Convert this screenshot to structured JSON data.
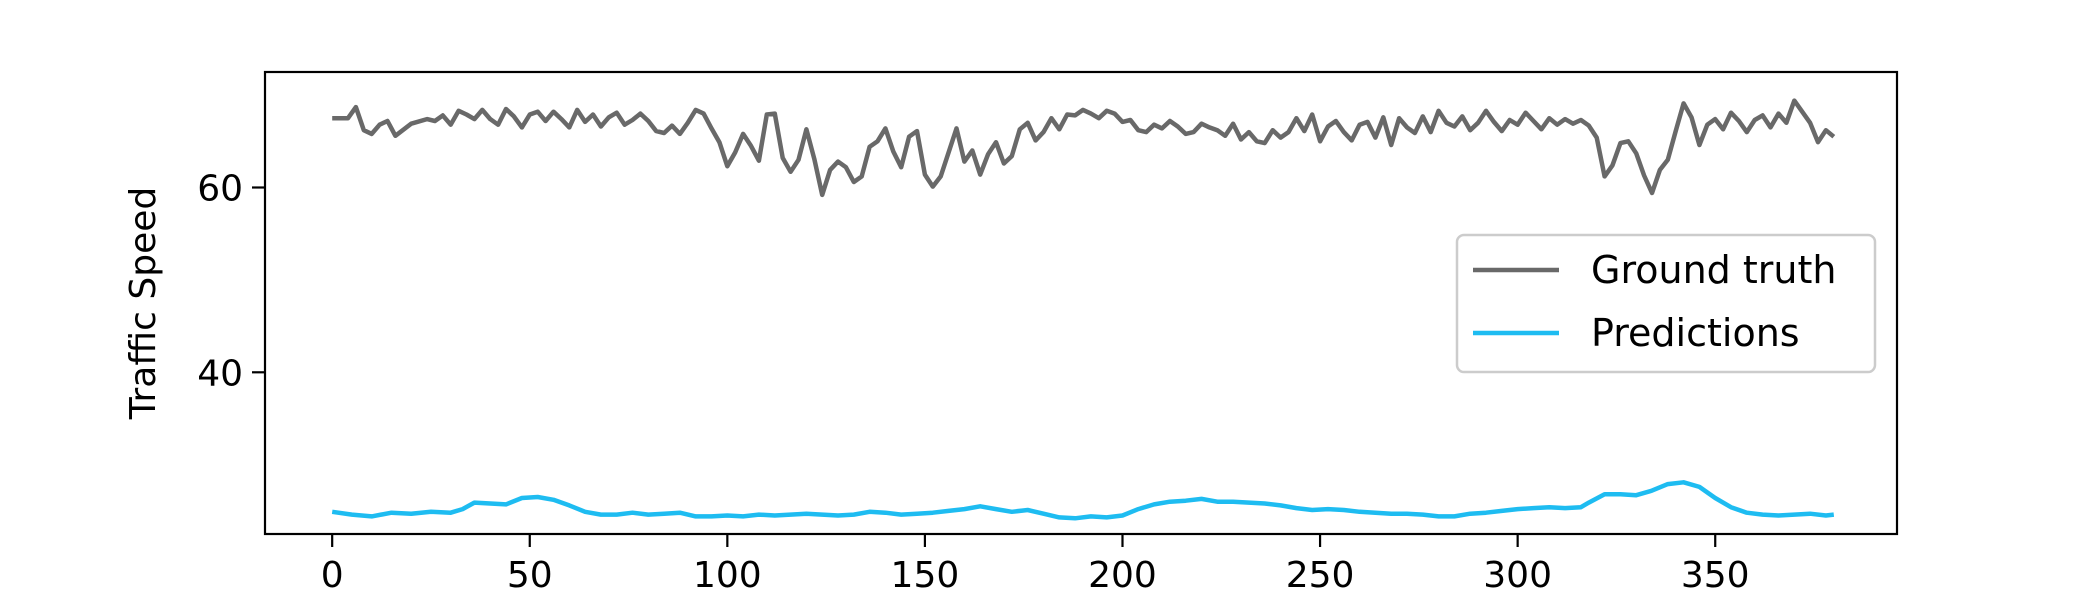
{
  "chart_data": {
    "type": "line",
    "title": "",
    "xlabel": "",
    "ylabel": "Traffic Speed",
    "xlim": [
      -17,
      396
    ],
    "ylim": [
      22.5,
      72.5
    ],
    "x_ticks": [
      0,
      50,
      100,
      150,
      200,
      250,
      300,
      350
    ],
    "y_ticks": [
      40,
      60
    ],
    "grid": false,
    "legend": {
      "placement": "center-right"
    },
    "series": [
      {
        "name": "Ground truth",
        "color": "#696969",
        "points": [
          [
            0,
            67.5
          ],
          [
            4,
            67.5
          ],
          [
            6,
            68.7
          ],
          [
            8,
            66.2
          ],
          [
            10,
            65.8
          ],
          [
            12,
            66.8
          ],
          [
            14,
            67.2
          ],
          [
            16,
            65.6
          ],
          [
            20,
            66.9
          ],
          [
            24,
            67.4
          ],
          [
            26,
            67.2
          ],
          [
            28,
            67.8
          ],
          [
            30,
            66.8
          ],
          [
            32,
            68.3
          ],
          [
            34,
            67.9
          ],
          [
            36,
            67.4
          ],
          [
            38,
            68.4
          ],
          [
            40,
            67.4
          ],
          [
            42,
            66.8
          ],
          [
            44,
            68.5
          ],
          [
            46,
            67.7
          ],
          [
            48,
            66.5
          ],
          [
            50,
            67.9
          ],
          [
            52,
            68.2
          ],
          [
            54,
            67.2
          ],
          [
            56,
            68.2
          ],
          [
            58,
            67.4
          ],
          [
            60,
            66.5
          ],
          [
            62,
            68.4
          ],
          [
            64,
            67.1
          ],
          [
            66,
            67.9
          ],
          [
            68,
            66.6
          ],
          [
            70,
            67.6
          ],
          [
            72,
            68.1
          ],
          [
            74,
            66.8
          ],
          [
            76,
            67.3
          ],
          [
            78,
            68.0
          ],
          [
            80,
            67.2
          ],
          [
            82,
            66.1
          ],
          [
            84,
            65.9
          ],
          [
            86,
            66.7
          ],
          [
            88,
            65.8
          ],
          [
            90,
            67.0
          ],
          [
            92,
            68.4
          ],
          [
            94,
            68.0
          ],
          [
            96,
            66.4
          ],
          [
            98,
            64.9
          ],
          [
            100,
            62.3
          ],
          [
            102,
            63.8
          ],
          [
            104,
            65.8
          ],
          [
            106,
            64.5
          ],
          [
            108,
            62.9
          ],
          [
            110,
            67.9
          ],
          [
            112,
            68.0
          ],
          [
            114,
            63.2
          ],
          [
            116,
            61.7
          ],
          [
            118,
            63.0
          ],
          [
            120,
            66.3
          ],
          [
            122,
            63.1
          ],
          [
            124,
            59.2
          ],
          [
            126,
            61.9
          ],
          [
            128,
            62.8
          ],
          [
            130,
            62.2
          ],
          [
            132,
            60.6
          ],
          [
            134,
            61.2
          ],
          [
            136,
            64.4
          ],
          [
            138,
            65.0
          ],
          [
            140,
            66.4
          ],
          [
            142,
            63.9
          ],
          [
            144,
            62.2
          ],
          [
            146,
            65.5
          ],
          [
            148,
            66.1
          ],
          [
            150,
            61.4
          ],
          [
            152,
            60.1
          ],
          [
            154,
            61.2
          ],
          [
            156,
            63.8
          ],
          [
            158,
            66.4
          ],
          [
            160,
            62.8
          ],
          [
            162,
            64.0
          ],
          [
            164,
            61.4
          ],
          [
            166,
            63.6
          ],
          [
            168,
            64.9
          ],
          [
            170,
            62.6
          ],
          [
            172,
            63.4
          ],
          [
            174,
            66.3
          ],
          [
            176,
            67.0
          ],
          [
            178,
            65.1
          ],
          [
            180,
            66.0
          ],
          [
            182,
            67.5
          ],
          [
            184,
            66.3
          ],
          [
            186,
            67.9
          ],
          [
            188,
            67.8
          ],
          [
            190,
            68.4
          ],
          [
            192,
            68.0
          ],
          [
            194,
            67.5
          ],
          [
            196,
            68.3
          ],
          [
            198,
            68.0
          ],
          [
            200,
            67.1
          ],
          [
            202,
            67.3
          ],
          [
            204,
            66.2
          ],
          [
            206,
            66.0
          ],
          [
            208,
            66.8
          ],
          [
            210,
            66.4
          ],
          [
            212,
            67.2
          ],
          [
            214,
            66.6
          ],
          [
            216,
            65.8
          ],
          [
            218,
            66.0
          ],
          [
            220,
            66.9
          ],
          [
            222,
            66.5
          ],
          [
            224,
            66.2
          ],
          [
            226,
            65.6
          ],
          [
            228,
            66.9
          ],
          [
            230,
            65.2
          ],
          [
            232,
            66.0
          ],
          [
            234,
            65.0
          ],
          [
            236,
            64.8
          ],
          [
            238,
            66.2
          ],
          [
            240,
            65.4
          ],
          [
            242,
            66.0
          ],
          [
            244,
            67.5
          ],
          [
            246,
            66.1
          ],
          [
            248,
            67.9
          ],
          [
            250,
            65.0
          ],
          [
            252,
            66.6
          ],
          [
            254,
            67.2
          ],
          [
            256,
            66.0
          ],
          [
            258,
            65.1
          ],
          [
            260,
            66.8
          ],
          [
            262,
            67.1
          ],
          [
            264,
            65.4
          ],
          [
            266,
            67.6
          ],
          [
            268,
            64.6
          ],
          [
            270,
            67.5
          ],
          [
            272,
            66.5
          ],
          [
            274,
            65.9
          ],
          [
            276,
            67.7
          ],
          [
            278,
            66.0
          ],
          [
            280,
            68.3
          ],
          [
            282,
            67.0
          ],
          [
            284,
            66.6
          ],
          [
            286,
            67.7
          ],
          [
            288,
            66.2
          ],
          [
            290,
            67.0
          ],
          [
            292,
            68.3
          ],
          [
            294,
            67.1
          ],
          [
            296,
            66.1
          ],
          [
            298,
            67.3
          ],
          [
            300,
            66.8
          ],
          [
            302,
            68.1
          ],
          [
            304,
            67.2
          ],
          [
            306,
            66.3
          ],
          [
            308,
            67.5
          ],
          [
            310,
            66.8
          ],
          [
            312,
            67.4
          ],
          [
            314,
            66.9
          ],
          [
            316,
            67.3
          ],
          [
            318,
            66.7
          ],
          [
            320,
            65.4
          ],
          [
            322,
            61.2
          ],
          [
            324,
            62.4
          ],
          [
            326,
            64.8
          ],
          [
            328,
            65.0
          ],
          [
            330,
            63.7
          ],
          [
            332,
            61.3
          ],
          [
            334,
            59.4
          ],
          [
            336,
            61.9
          ],
          [
            338,
            63.0
          ],
          [
            340,
            66.1
          ],
          [
            342,
            69.1
          ],
          [
            344,
            67.6
          ],
          [
            346,
            64.6
          ],
          [
            348,
            66.8
          ],
          [
            350,
            67.4
          ],
          [
            352,
            66.3
          ],
          [
            354,
            68.1
          ],
          [
            356,
            67.2
          ],
          [
            358,
            66.0
          ],
          [
            360,
            67.3
          ],
          [
            362,
            67.8
          ],
          [
            364,
            66.5
          ],
          [
            366,
            68.0
          ],
          [
            368,
            67.0
          ],
          [
            370,
            69.4
          ],
          [
            372,
            68.2
          ],
          [
            374,
            67.0
          ],
          [
            376,
            64.9
          ],
          [
            378,
            66.2
          ],
          [
            380,
            65.5
          ]
        ]
      },
      {
        "name": "Predictions",
        "color": "#1ebcf1",
        "points": [
          [
            0,
            24.9
          ],
          [
            5,
            24.6
          ],
          [
            10,
            24.4
          ],
          [
            15,
            24.8
          ],
          [
            20,
            24.7
          ],
          [
            25,
            24.9
          ],
          [
            30,
            24.8
          ],
          [
            33,
            25.2
          ],
          [
            36,
            25.9
          ],
          [
            40,
            25.8
          ],
          [
            44,
            25.7
          ],
          [
            48,
            26.4
          ],
          [
            52,
            26.5
          ],
          [
            56,
            26.2
          ],
          [
            60,
            25.6
          ],
          [
            64,
            24.9
          ],
          [
            68,
            24.6
          ],
          [
            72,
            24.6
          ],
          [
            76,
            24.8
          ],
          [
            80,
            24.6
          ],
          [
            84,
            24.7
          ],
          [
            88,
            24.8
          ],
          [
            92,
            24.4
          ],
          [
            96,
            24.4
          ],
          [
            100,
            24.5
          ],
          [
            104,
            24.4
          ],
          [
            108,
            24.6
          ],
          [
            112,
            24.5
          ],
          [
            116,
            24.6
          ],
          [
            120,
            24.7
          ],
          [
            124,
            24.6
          ],
          [
            128,
            24.5
          ],
          [
            132,
            24.6
          ],
          [
            136,
            24.9
          ],
          [
            140,
            24.8
          ],
          [
            144,
            24.6
          ],
          [
            148,
            24.7
          ],
          [
            152,
            24.8
          ],
          [
            156,
            25.0
          ],
          [
            160,
            25.2
          ],
          [
            164,
            25.5
          ],
          [
            168,
            25.2
          ],
          [
            172,
            24.9
          ],
          [
            176,
            25.1
          ],
          [
            180,
            24.7
          ],
          [
            184,
            24.3
          ],
          [
            188,
            24.2
          ],
          [
            192,
            24.4
          ],
          [
            196,
            24.3
          ],
          [
            200,
            24.5
          ],
          [
            204,
            25.2
          ],
          [
            208,
            25.7
          ],
          [
            212,
            26.0
          ],
          [
            216,
            26.1
          ],
          [
            220,
            26.3
          ],
          [
            224,
            26.0
          ],
          [
            228,
            26.0
          ],
          [
            232,
            25.9
          ],
          [
            236,
            25.8
          ],
          [
            240,
            25.6
          ],
          [
            244,
            25.3
          ],
          [
            248,
            25.1
          ],
          [
            252,
            25.2
          ],
          [
            256,
            25.1
          ],
          [
            260,
            24.9
          ],
          [
            264,
            24.8
          ],
          [
            268,
            24.7
          ],
          [
            272,
            24.7
          ],
          [
            276,
            24.6
          ],
          [
            280,
            24.4
          ],
          [
            284,
            24.4
          ],
          [
            288,
            24.7
          ],
          [
            292,
            24.8
          ],
          [
            296,
            25.0
          ],
          [
            300,
            25.2
          ],
          [
            304,
            25.3
          ],
          [
            308,
            25.4
          ],
          [
            312,
            25.3
          ],
          [
            316,
            25.4
          ],
          [
            318,
            25.9
          ],
          [
            322,
            26.8
          ],
          [
            326,
            26.8
          ],
          [
            330,
            26.7
          ],
          [
            334,
            27.2
          ],
          [
            338,
            27.9
          ],
          [
            342,
            28.1
          ],
          [
            346,
            27.6
          ],
          [
            350,
            26.4
          ],
          [
            354,
            25.4
          ],
          [
            358,
            24.8
          ],
          [
            362,
            24.6
          ],
          [
            366,
            24.5
          ],
          [
            370,
            24.6
          ],
          [
            374,
            24.7
          ],
          [
            378,
            24.5
          ],
          [
            380,
            24.6
          ]
        ]
      }
    ]
  }
}
